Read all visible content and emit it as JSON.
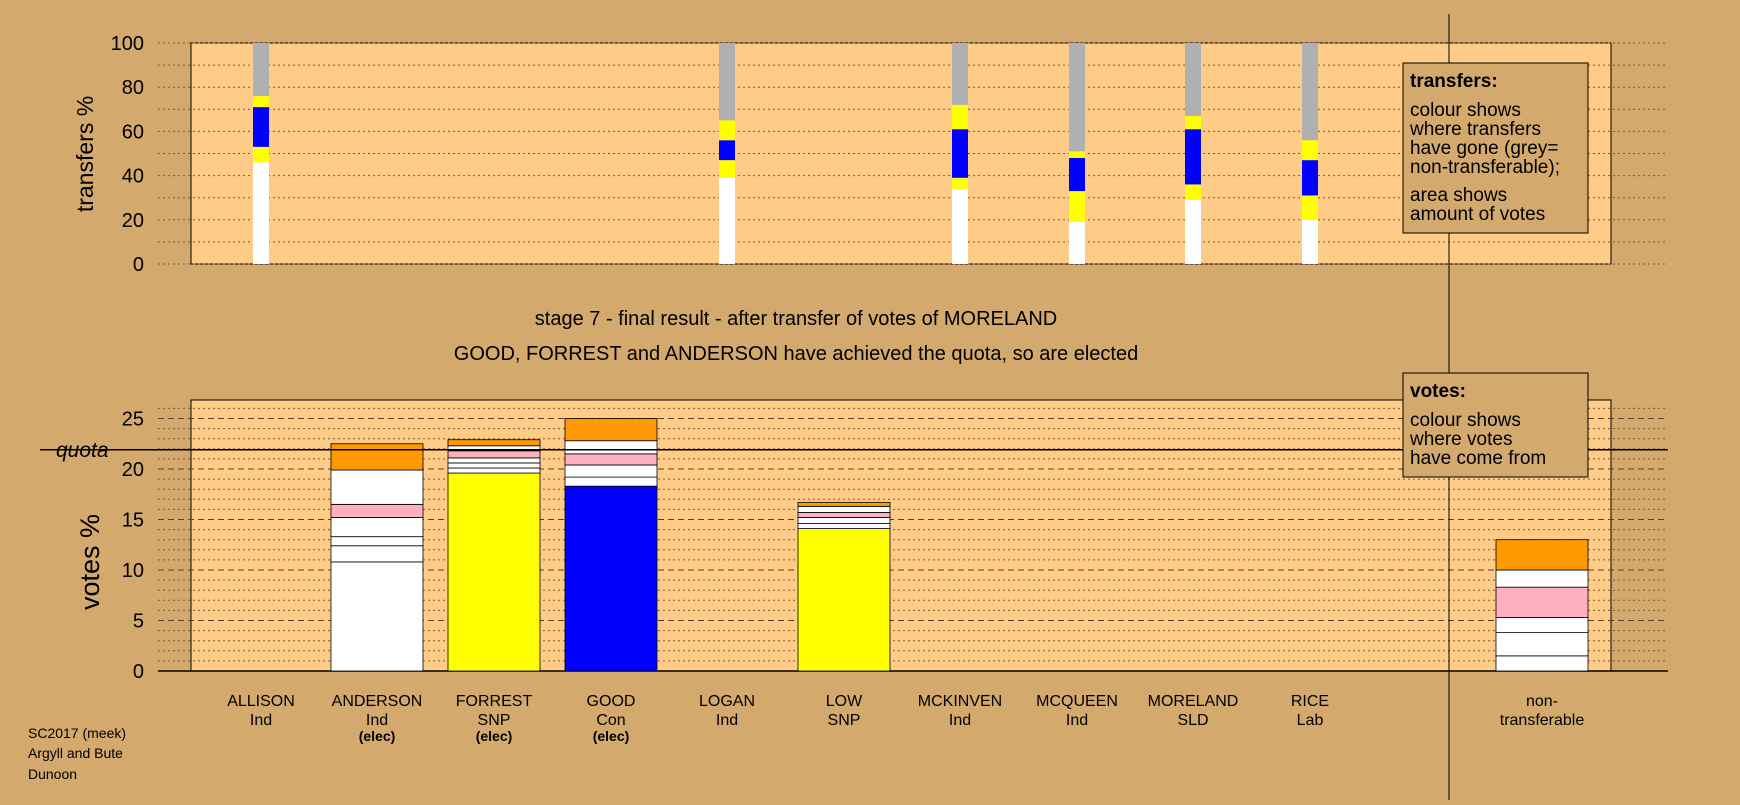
{
  "colors": {
    "page_bg": "#d4a96e",
    "plot_bg": "#ffcc88",
    "non_transferable": "#b0b0b0",
    "Ind": "#ffffff",
    "SNP": "#ffff00",
    "Con": "#0000ff",
    "Lab": "#ff0000",
    "SLD": "#ff9900",
    "pink": "#ffb0c0"
  },
  "header": {
    "stage_text": "stage 7 - final result - after transfer of votes of MORELAND",
    "elected_text": "GOOD, FORREST and ANDERSON have achieved the quota, so are elected"
  },
  "footer": {
    "line1": "SC2017 (meek)",
    "line2": "Argyll and Bute",
    "line3": "Dunoon"
  },
  "legend_transfers": {
    "title": "transfers:",
    "lines": [
      "colour shows",
      "where transfers",
      "have gone (grey=",
      "non-transferable);"
    ],
    "lines2": [
      "area shows",
      "amount of votes"
    ]
  },
  "legend_votes": {
    "title": "votes:",
    "lines": [
      "colour shows",
      "where votes",
      "have come from"
    ]
  },
  "candidates": [
    {
      "name": "ALLISON",
      "party": "Ind",
      "elec": ""
    },
    {
      "name": "ANDERSON",
      "party": "Ind",
      "elec": "(elec)"
    },
    {
      "name": "FORREST",
      "party": "SNP",
      "elec": "(elec)"
    },
    {
      "name": "GOOD",
      "party": "Con",
      "elec": "(elec)"
    },
    {
      "name": "LOGAN",
      "party": "Ind",
      "elec": ""
    },
    {
      "name": "LOW",
      "party": "SNP",
      "elec": ""
    },
    {
      "name": "MCKINVEN",
      "party": "Ind",
      "elec": ""
    },
    {
      "name": "MCQUEEN",
      "party": "Ind",
      "elec": ""
    },
    {
      "name": "MORELAND",
      "party": "SLD",
      "elec": ""
    },
    {
      "name": "RICE",
      "party": "Lab",
      "elec": ""
    },
    {
      "name": "non-",
      "party": "transferable",
      "elec": ""
    }
  ],
  "chart_data": [
    {
      "type": "bar",
      "stacked": true,
      "ylabel": "transfers %",
      "ylim": [
        0,
        100
      ],
      "yticks": [
        0,
        20,
        40,
        60,
        80,
        100
      ],
      "columns": [
        {
          "index": 0,
          "segments": [
            {
              "from": 0,
              "to": 46,
              "color": "#ffffff"
            },
            {
              "from": 46,
              "to": 53,
              "color": "#ffff00"
            },
            {
              "from": 53,
              "to": 71,
              "color": "#0000ff"
            },
            {
              "from": 71,
              "to": 76,
              "color": "#ffff00"
            },
            {
              "from": 76,
              "to": 100,
              "color": "#b0b0b0"
            }
          ]
        },
        {
          "index": 4,
          "segments": [
            {
              "from": 0,
              "to": 39,
              "color": "#ffffff"
            },
            {
              "from": 39,
              "to": 47,
              "color": "#ffff00"
            },
            {
              "from": 47,
              "to": 56,
              "color": "#0000ff"
            },
            {
              "from": 56,
              "to": 65,
              "color": "#ffff00"
            },
            {
              "from": 65,
              "to": 100,
              "color": "#b0b0b0"
            }
          ]
        },
        {
          "index": 6,
          "segments": [
            {
              "from": 0,
              "to": 34,
              "color": "#ffffff"
            },
            {
              "from": 34,
              "to": 39,
              "color": "#ffff00"
            },
            {
              "from": 39,
              "to": 61,
              "color": "#0000ff"
            },
            {
              "from": 61,
              "to": 72,
              "color": "#ffff00"
            },
            {
              "from": 72,
              "to": 100,
              "color": "#b0b0b0"
            }
          ]
        },
        {
          "index": 7,
          "segments": [
            {
              "from": 0,
              "to": 19,
              "color": "#ffffff"
            },
            {
              "from": 19,
              "to": 33,
              "color": "#ffff00"
            },
            {
              "from": 33,
              "to": 48,
              "color": "#0000ff"
            },
            {
              "from": 48,
              "to": 51,
              "color": "#ffff00"
            },
            {
              "from": 51,
              "to": 100,
              "color": "#b0b0b0"
            }
          ]
        },
        {
          "index": 8,
          "segments": [
            {
              "from": 0,
              "to": 29,
              "color": "#ffffff"
            },
            {
              "from": 29,
              "to": 36,
              "color": "#ffff00"
            },
            {
              "from": 36,
              "to": 61,
              "color": "#0000ff"
            },
            {
              "from": 61,
              "to": 67,
              "color": "#ffff00"
            },
            {
              "from": 67,
              "to": 100,
              "color": "#b0b0b0"
            }
          ]
        },
        {
          "index": 9,
          "segments": [
            {
              "from": 0,
              "to": 20,
              "color": "#ffffff"
            },
            {
              "from": 20,
              "to": 31,
              "color": "#ffff00"
            },
            {
              "from": 31,
              "to": 47,
              "color": "#0000ff"
            },
            {
              "from": 47,
              "to": 56,
              "color": "#ffff00"
            },
            {
              "from": 56,
              "to": 100,
              "color": "#b0b0b0"
            }
          ]
        }
      ]
    },
    {
      "type": "bar",
      "stacked": true,
      "ylabel": "votes %",
      "ylim": [
        0,
        27
      ],
      "yticks": [
        0,
        5,
        10,
        15,
        20,
        25
      ],
      "quota_label": "quota",
      "quota": 21.9,
      "columns": [
        {
          "index": 0,
          "segments": []
        },
        {
          "index": 1,
          "segments": [
            {
              "from": 0,
              "to": 10.8,
              "color": "#ffffff"
            },
            {
              "from": 10.8,
              "to": 12.4,
              "color": "#ffffff"
            },
            {
              "from": 12.4,
              "to": 13.3,
              "color": "#ffffff"
            },
            {
              "from": 13.3,
              "to": 15.2,
              "color": "#ffffff"
            },
            {
              "from": 15.2,
              "to": 16.5,
              "color": "#ffb0c0"
            },
            {
              "from": 16.5,
              "to": 19.9,
              "color": "#ffffff"
            },
            {
              "from": 19.9,
              "to": 22.5,
              "color": "#ff9900"
            }
          ]
        },
        {
          "index": 2,
          "segments": [
            {
              "from": 0,
              "to": 19.6,
              "color": "#ffff00"
            },
            {
              "from": 19.6,
              "to": 20.1,
              "color": "#ffffff"
            },
            {
              "from": 20.1,
              "to": 20.6,
              "color": "#ffffff"
            },
            {
              "from": 20.6,
              "to": 21.1,
              "color": "#ffffff"
            },
            {
              "from": 21.1,
              "to": 21.8,
              "color": "#ffb0c0"
            },
            {
              "from": 21.8,
              "to": 22.3,
              "color": "#ffffff"
            },
            {
              "from": 22.3,
              "to": 22.9,
              "color": "#ff9900"
            }
          ]
        },
        {
          "index": 3,
          "segments": [
            {
              "from": 0,
              "to": 18.3,
              "color": "#0000ff"
            },
            {
              "from": 18.3,
              "to": 19.2,
              "color": "#ffffff"
            },
            {
              "from": 19.2,
              "to": 20.4,
              "color": "#ffffff"
            },
            {
              "from": 20.4,
              "to": 21.5,
              "color": "#ffb0c0"
            },
            {
              "from": 21.5,
              "to": 22.8,
              "color": "#ffffff"
            },
            {
              "from": 22.8,
              "to": 25.0,
              "color": "#ff9900"
            }
          ]
        },
        {
          "index": 4,
          "segments": []
        },
        {
          "index": 5,
          "segments": [
            {
              "from": 0,
              "to": 14.1,
              "color": "#ffff00"
            },
            {
              "from": 14.1,
              "to": 14.6,
              "color": "#ffffff"
            },
            {
              "from": 14.6,
              "to": 15.2,
              "color": "#ffffff"
            },
            {
              "from": 15.2,
              "to": 15.7,
              "color": "#ffb0c0"
            },
            {
              "from": 15.7,
              "to": 16.3,
              "color": "#ffffff"
            },
            {
              "from": 16.3,
              "to": 16.7,
              "color": "#ff9900"
            }
          ]
        },
        {
          "index": 6,
          "segments": []
        },
        {
          "index": 7,
          "segments": []
        },
        {
          "index": 8,
          "segments": []
        },
        {
          "index": 9,
          "segments": []
        },
        {
          "index": 10,
          "segments": [
            {
              "from": 0,
              "to": 1.5,
              "color": "#ffffff"
            },
            {
              "from": 1.5,
              "to": 3.8,
              "color": "#ffffff"
            },
            {
              "from": 3.8,
              "to": 5.3,
              "color": "#ffffff"
            },
            {
              "from": 5.3,
              "to": 8.3,
              "color": "#ffb0c0"
            },
            {
              "from": 8.3,
              "to": 10.0,
              "color": "#ffffff"
            },
            {
              "from": 10.0,
              "to": 13.0,
              "color": "#ff9900"
            }
          ]
        }
      ]
    }
  ]
}
